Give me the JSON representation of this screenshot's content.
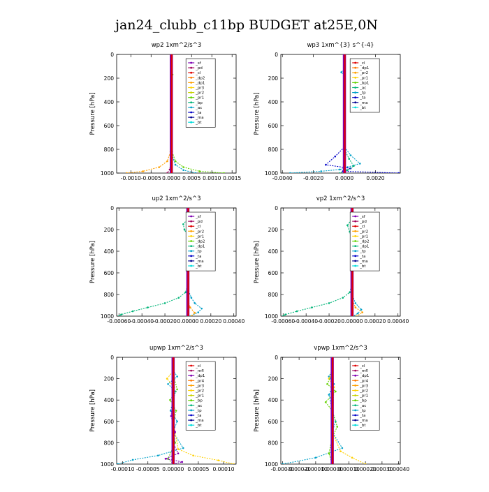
{
  "title": "jan24_clubb_c11bp  BUDGET at25E,0N",
  "ylabel": "Pressure [hPa]",
  "chart_data": [
    {
      "type": "line",
      "title": "wp2  1xm^2/s^3",
      "xticks": [
        "-0.0010",
        "-0.0005",
        "0.0000",
        "0.0005",
        "0.0010",
        "0.0015"
      ],
      "xtickvals": [
        -0.001,
        -0.0005,
        0,
        0.0005,
        0.001,
        0.0015
      ],
      "xlim": [
        -0.00135,
        0.0016
      ],
      "yticks": [
        "0",
        "200",
        "400",
        "600",
        "800",
        "1000"
      ],
      "ylim": [
        0,
        1000
      ],
      "legend": [
        "_sf",
        "_pd",
        "_cl",
        "_dp2",
        "_dp1",
        "_pr3",
        "_pr2",
        "_pr1",
        "_bp",
        "_ac",
        "_ta",
        "_ma",
        "_bt"
      ],
      "legend_colors": [
        "#7f00b2",
        "#a0005a",
        "#e00000",
        "#ff7800",
        "#ffa000",
        "#ffd000",
        "#c8d200",
        "#64d200",
        "#00b478",
        "#00a0c8",
        "#0000c8",
        "#000090",
        "#00dcdc"
      ],
      "series": [
        {
          "name": "_dp1",
          "x": [
            0,
            0,
            0,
            -2e-05,
            -0.0001,
            -0.0003,
            -0.0007,
            -0.0011
          ],
          "y": [
            0,
            200,
            600,
            820,
            900,
            950,
            985,
            1000
          ]
        },
        {
          "name": "_pr1",
          "x": [
            0,
            3e-05,
            0,
            0,
            2e-05,
            0.0001,
            0.0003,
            0.0007,
            0.0013
          ],
          "y": [
            0,
            170,
            260,
            600,
            820,
            900,
            950,
            985,
            1000
          ]
        },
        {
          "name": "_ac",
          "x": [
            0,
            0,
            2e-05,
            0.0001,
            0.0003,
            0.0006
          ],
          "y": [
            0,
            600,
            850,
            930,
            975,
            1000
          ]
        },
        {
          "name": "_pd",
          "x": [
            0,
            0,
            -1e-05,
            -4e-05,
            -0.0001
          ],
          "y": [
            0,
            700,
            900,
            970,
            1000
          ]
        }
      ]
    },
    {
      "type": "line",
      "title": "wp3  1xm^{3} s^{-4}",
      "xticks": [
        "-0.0040",
        "-0.0020",
        "0.0000",
        "0.0020"
      ],
      "xtickvals": [
        -0.004,
        -0.002,
        0,
        0.002
      ],
      "xlim": [
        -0.0041,
        0.0036
      ],
      "yticks": [
        "0",
        "200",
        "400",
        "600",
        "800",
        "1000"
      ],
      "ylim": [
        0,
        1000
      ],
      "legend": [
        "_cl",
        "_dp1",
        "_pr2",
        "_pr1",
        "_bp1",
        "_ac",
        "_tp",
        "_ta",
        "_ma",
        "_bt"
      ],
      "legend_colors": [
        "#e00000",
        "#ff7800",
        "#ffa000",
        "#ffd000",
        "#64d200",
        "#00b478",
        "#00a0c8",
        "#0000c8",
        "#000090",
        "#00dcdc"
      ],
      "series": [
        {
          "name": "_tp",
          "x": [
            0,
            0,
            -0.0002,
            0,
            0,
            0.0004,
            0.001,
            0.0002,
            -0.0003,
            -0.0015,
            -0.0035
          ],
          "y": [
            0,
            120,
            150,
            180,
            780,
            850,
            920,
            950,
            970,
            985,
            1000
          ]
        },
        {
          "name": "_ta",
          "x": [
            0,
            0,
            -0.0006,
            -0.0012,
            0.0004,
            -0.0001,
            0.0035
          ],
          "y": [
            0,
            780,
            860,
            930,
            960,
            985,
            1000
          ]
        },
        {
          "name": "_ac",
          "x": [
            0,
            0,
            0.0003,
            0.0006,
            0.0002,
            -0.0003
          ],
          "y": [
            0,
            800,
            880,
            940,
            975,
            1000
          ]
        }
      ]
    },
    {
      "type": "line",
      "title": "up2  1xm^2/s^3",
      "xticks": [
        "-0.00060",
        "-0.00040",
        "-0.00020",
        "0.00000",
        "0.00020",
        "0.00040"
      ],
      "xtickvals": [
        -0.0006,
        -0.0004,
        -0.0002,
        0,
        0.0002,
        0.0004
      ],
      "xlim": [
        -0.00062,
        0.00042
      ],
      "yticks": [
        "0",
        "200",
        "400",
        "600",
        "800",
        "1000"
      ],
      "ylim": [
        0,
        1000
      ],
      "legend": [
        "_sf",
        "_pd",
        "_cl",
        "_pr2",
        "_pr1",
        "_dp2",
        "_dp1",
        "_tp",
        "_ta",
        "_ma",
        "_bt"
      ],
      "legend_colors": [
        "#7f00b2",
        "#a0005a",
        "#e00000",
        "#ffa000",
        "#ffd000",
        "#64d200",
        "#00b478",
        "#00a0c8",
        "#0000c8",
        "#000090",
        "#00dcdc"
      ],
      "series": [
        {
          "name": "_dp1",
          "x": [
            0,
            0,
            -4e-05,
            -3e-05,
            0,
            0,
            -2e-05,
            -8e-05,
            -0.0002,
            -0.00035,
            -0.00048,
            -0.00058,
            -0.0006
          ],
          "y": [
            0,
            100,
            150,
            200,
            260,
            700,
            780,
            830,
            880,
            920,
            955,
            985,
            1000
          ]
        },
        {
          "name": "_tp",
          "x": [
            0,
            0,
            3e-05,
            6e-05,
            0.00012,
            9e-05,
            2e-05
          ],
          "y": [
            0,
            750,
            830,
            880,
            930,
            965,
            1000
          ]
        },
        {
          "name": "_pr2",
          "x": [
            0,
            0,
            2e-05,
            6e-05,
            3e-05
          ],
          "y": [
            0,
            850,
            920,
            970,
            1000
          ]
        }
      ]
    },
    {
      "type": "line",
      "title": "vp2  1xm^2/s^3",
      "xticks": [
        "-0.00060",
        "-0.00040",
        "-0.00020",
        "0.00000",
        "0.00020",
        "0.00040"
      ],
      "xtickvals": [
        -0.0006,
        -0.0004,
        -0.0002,
        0,
        0.0002,
        0.0004
      ],
      "xlim": [
        -0.00062,
        0.00042
      ],
      "yticks": [
        "0",
        "200",
        "400",
        "600",
        "800",
        "1000"
      ],
      "ylim": [
        0,
        1000
      ],
      "legend": [
        "_sf",
        "_pd",
        "_cl",
        "_pr2",
        "_pr1",
        "_dp2",
        "_dp1",
        "_tp",
        "_ta",
        "_ma",
        "_bt"
      ],
      "legend_colors": [
        "#7f00b2",
        "#a0005a",
        "#e00000",
        "#ffa000",
        "#ffd000",
        "#64d200",
        "#00b478",
        "#00a0c8",
        "#0000c8",
        "#000090",
        "#00dcdc"
      ],
      "series": [
        {
          "name": "_dp1",
          "x": [
            0,
            0,
            -4e-05,
            -2e-05,
            0,
            0,
            -2e-05,
            -8e-05,
            -0.0002,
            -0.00035,
            -0.00048,
            -0.00058,
            -0.0006
          ],
          "y": [
            0,
            100,
            160,
            220,
            300,
            700,
            780,
            830,
            880,
            920,
            955,
            985,
            1000
          ]
        },
        {
          "name": "_tp",
          "x": [
            0,
            0,
            3e-05,
            8e-05,
            5e-05,
            1e-05
          ],
          "y": [
            0,
            800,
            880,
            940,
            975,
            1000
          ]
        },
        {
          "name": "_pr2",
          "x": [
            0,
            0,
            3e-05,
            9e-05,
            4e-05
          ],
          "y": [
            0,
            850,
            920,
            965,
            1000
          ]
        }
      ]
    },
    {
      "type": "line",
      "title": "upwp  1xm^2/s^3",
      "xticks": [
        "-0.00010",
        "-0.00005",
        "0.00000",
        "0.00005",
        "0.00010"
      ],
      "xtickvals": [
        -0.0001,
        -5e-05,
        0,
        5e-05,
        0.0001
      ],
      "xlim": [
        -0.000112,
        0.000125
      ],
      "yticks": [
        "0",
        "200",
        "400",
        "600",
        "800",
        "1000"
      ],
      "ylim": [
        0,
        1000
      ],
      "legend": [
        "_cl",
        "_mfl",
        "_dp1",
        "_pr4",
        "_pr3",
        "_pr2",
        "_pr1",
        "_bp",
        "_ac",
        "_tp",
        "_ta",
        "_ma",
        "_bt"
      ],
      "legend_colors": [
        "#e00000",
        "#a0005a",
        "#7f00b2",
        "#ff7800",
        "#ffa000",
        "#ffd000",
        "#c8d200",
        "#64d200",
        "#00b478",
        "#00a0c8",
        "#0000c8",
        "#000090",
        "#00dcdc"
      ],
      "series": [
        {
          "name": "_tp",
          "x": [
            0,
            0,
            8e-06,
            -1e-05,
            5e-06,
            0,
            -5e-06,
            8e-06,
            0,
            2e-05,
            -3e-05,
            -8e-05,
            -0.00011
          ],
          "y": [
            0,
            120,
            180,
            250,
            320,
            400,
            500,
            600,
            700,
            850,
            920,
            960,
            1000
          ]
        },
        {
          "name": "_pr2",
          "x": [
            0,
            0,
            -1.2e-05,
            2e-06,
            0,
            1e-05,
            4e-05,
            9e-05,
            0.00012
          ],
          "y": [
            0,
            130,
            200,
            280,
            600,
            860,
            920,
            965,
            1000
          ]
        },
        {
          "name": "_bp",
          "x": [
            0,
            0,
            8e-06,
            -6e-06,
            6e-06,
            0,
            4e-06,
            -1e-05,
            0
          ],
          "y": [
            0,
            150,
            300,
            400,
            500,
            650,
            800,
            950,
            1000
          ]
        },
        {
          "name": "_dp1",
          "x": [
            0,
            0,
            -4e-06,
            4e-06,
            0,
            1e-05,
            -1.5e-05,
            1.8e-05,
            0
          ],
          "y": [
            0,
            400,
            550,
            700,
            800,
            900,
            950,
            980,
            1000
          ]
        }
      ]
    },
    {
      "type": "line",
      "title": "vpwp  1xm^2/s^3",
      "xticks": [
        "-0.00030",
        "-0.00020",
        "-0.00010",
        "0.00000",
        "0.00010",
        "0.00020",
        "0.00030",
        "0.00040"
      ],
      "xtickvals": [
        -0.0003,
        -0.0002,
        -0.0001,
        0,
        0.0001,
        0.0002,
        0.0003,
        0.0004
      ],
      "xlim": [
        -0.00031,
        0.00041
      ],
      "yticks": [
        "0",
        "200",
        "400",
        "600",
        "800",
        "1000"
      ],
      "ylim": [
        0,
        1000
      ],
      "legend": [
        "_cl",
        "_mfl",
        "_dp1",
        "_pr4",
        "_pr3",
        "_pr2",
        "_pr1",
        "_bp",
        "_ac",
        "_tp",
        "_ta",
        "_ma",
        "_bt"
      ],
      "legend_colors": [
        "#e00000",
        "#a0005a",
        "#7f00b2",
        "#ff7800",
        "#ffa000",
        "#ffd000",
        "#c8d200",
        "#64d200",
        "#00b478",
        "#00a0c8",
        "#0000c8",
        "#000090",
        "#00dcdc"
      ],
      "series": [
        {
          "name": "_tp",
          "x": [
            0,
            0,
            -2e-05,
            1e-05,
            -2e-05,
            0,
            2e-05,
            0,
            6e-05,
            -0.0001,
            -0.0003
          ],
          "y": [
            0,
            120,
            180,
            250,
            350,
            500,
            600,
            700,
            850,
            940,
            1000
          ]
        },
        {
          "name": "_pr2",
          "x": [
            0,
            0,
            -2e-05,
            1e-05,
            0,
            5e-05,
            0.00012,
            0.0002
          ],
          "y": [
            0,
            130,
            200,
            280,
            700,
            880,
            940,
            1000
          ]
        },
        {
          "name": "_bp",
          "x": [
            0,
            0,
            -3e-05,
            2e-05,
            -4e-05,
            0,
            3e-05,
            0,
            -2e-05,
            0
          ],
          "y": [
            0,
            150,
            250,
            320,
            420,
            500,
            650,
            750,
            900,
            1000
          ]
        }
      ]
    }
  ]
}
